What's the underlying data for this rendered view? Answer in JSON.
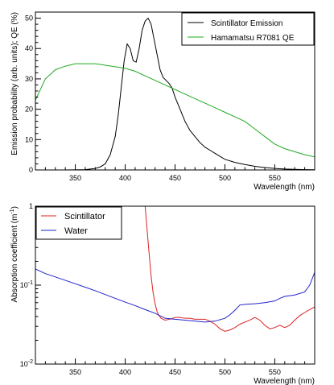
{
  "chart_data": [
    {
      "type": "line",
      "xlabel": "Wavelength (nm)",
      "ylabel": "Emission probability (arb. units); QE (%)",
      "xlim": [
        310,
        590
      ],
      "ylim": [
        0,
        52
      ],
      "xticks": [
        350,
        400,
        450,
        500,
        550
      ],
      "yticks": [
        0,
        10,
        20,
        30,
        40,
        50
      ],
      "grid": false,
      "legend_position": "top-right",
      "series": [
        {
          "name": "Scintillator Emission",
          "color": "#000000",
          "x": [
            310,
            340,
            360,
            370,
            375,
            380,
            385,
            390,
            393,
            396,
            399,
            402,
            405,
            408,
            411,
            414,
            417,
            420,
            423,
            426,
            429,
            432,
            435,
            438,
            441,
            444,
            447,
            450,
            455,
            460,
            465,
            470,
            475,
            480,
            485,
            490,
            495,
            500,
            510,
            520,
            530,
            540,
            550,
            560,
            570,
            580,
            590
          ],
          "y": [
            0,
            0,
            0.1,
            0.5,
            1,
            2,
            5,
            11,
            18,
            27,
            36,
            41.5,
            40,
            36,
            35.5,
            40,
            46,
            49,
            50,
            48,
            43,
            38,
            33,
            30.5,
            29.5,
            28.5,
            27,
            24,
            20,
            16,
            13,
            11,
            9,
            7.5,
            6.5,
            5.5,
            4.5,
            3.5,
            2.5,
            1.8,
            1.2,
            0.8,
            0.5,
            0.3,
            0.2,
            0.1,
            0.05
          ]
        },
        {
          "name": "Hamamatsu R7081 QE",
          "color": "#22aa22",
          "x": [
            310,
            320,
            330,
            340,
            350,
            360,
            370,
            380,
            390,
            400,
            410,
            420,
            430,
            440,
            450,
            460,
            470,
            480,
            490,
            500,
            510,
            520,
            530,
            540,
            550,
            560,
            570,
            580,
            590
          ],
          "y": [
            23,
            30,
            33,
            34.2,
            35,
            35,
            35,
            34.5,
            34,
            33.5,
            32.5,
            31,
            29.5,
            28,
            26.5,
            25,
            23.5,
            22,
            20.5,
            19,
            17.5,
            16,
            13.5,
            11,
            8.5,
            7,
            6,
            5,
            4.3
          ]
        }
      ]
    },
    {
      "type": "line",
      "xlabel": "Wavelength (nm)",
      "ylabel": "Absorption coefficient (m",
      "ylabel_sup": "-1",
      "ylabel_close": ")",
      "xlim": [
        310,
        590
      ],
      "ylim": [
        0.01,
        1
      ],
      "yscale": "log",
      "xticks": [
        350,
        400,
        450,
        500,
        550
      ],
      "ytick_labels": [
        {
          "value": 0.01,
          "base": "10",
          "exp": "-2"
        },
        {
          "value": 0.1,
          "base": "10",
          "exp": "-1"
        },
        {
          "value": 1,
          "base": "1",
          "exp": ""
        }
      ],
      "grid": false,
      "legend_position": "top-left",
      "series": [
        {
          "name": "Scintillator",
          "color": "#dd2222",
          "x": [
            420,
            422,
            424,
            426,
            428,
            430,
            432,
            434,
            436,
            438,
            440,
            445,
            450,
            455,
            460,
            465,
            470,
            475,
            480,
            485,
            490,
            495,
            500,
            505,
            510,
            515,
            520,
            525,
            530,
            535,
            540,
            545,
            550,
            555,
            560,
            565,
            570,
            575,
            580,
            585,
            590
          ],
          "y": [
            1.0,
            0.5,
            0.25,
            0.13,
            0.08,
            0.058,
            0.046,
            0.041,
            0.038,
            0.037,
            0.036,
            0.037,
            0.039,
            0.039,
            0.038,
            0.038,
            0.037,
            0.037,
            0.037,
            0.035,
            0.032,
            0.028,
            0.026,
            0.027,
            0.029,
            0.032,
            0.034,
            0.036,
            0.039,
            0.036,
            0.031,
            0.028,
            0.029,
            0.031,
            0.029,
            0.031,
            0.036,
            0.041,
            0.045,
            0.049,
            0.053
          ]
        },
        {
          "name": "Water",
          "color": "#2222cc",
          "x": [
            310,
            320,
            330,
            340,
            350,
            360,
            370,
            380,
            390,
            400,
            410,
            420,
            430,
            440,
            450,
            460,
            470,
            480,
            490,
            500,
            505,
            510,
            515,
            520,
            530,
            540,
            550,
            555,
            560,
            570,
            580,
            585,
            590
          ],
          "y": [
            0.16,
            0.14,
            0.127,
            0.115,
            0.104,
            0.094,
            0.085,
            0.076,
            0.068,
            0.061,
            0.055,
            0.049,
            0.044,
            0.038,
            0.037,
            0.036,
            0.035,
            0.034,
            0.035,
            0.038,
            0.042,
            0.048,
            0.056,
            0.057,
            0.058,
            0.06,
            0.063,
            0.068,
            0.072,
            0.075,
            0.082,
            0.1,
            0.145
          ]
        }
      ]
    }
  ]
}
